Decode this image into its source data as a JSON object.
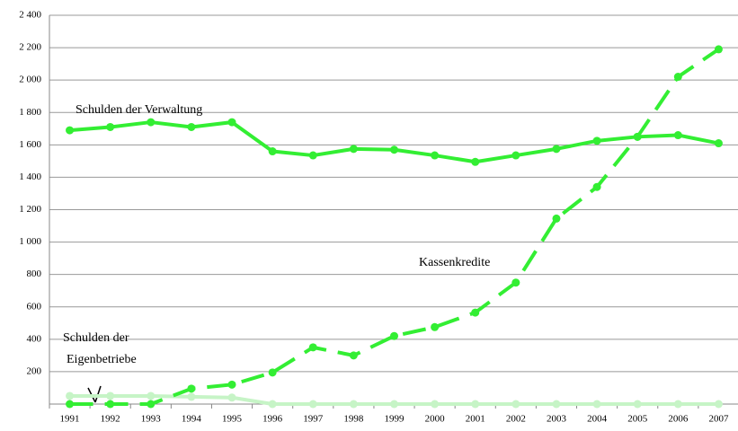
{
  "chart_data": {
    "type": "line",
    "categories": [
      "1991",
      "1992",
      "1993",
      "1994",
      "1995",
      "1996",
      "1997",
      "1998",
      "1999",
      "2000",
      "2001",
      "2002",
      "2003",
      "2004",
      "2005",
      "2006",
      "2007"
    ],
    "series": [
      {
        "color": "#33ee33",
        "dash": false,
        "values": [
          1690,
          1710,
          1740,
          1710,
          1740,
          1560,
          1535,
          1575,
          1570,
          1535,
          1495,
          1535,
          1575,
          1625,
          1650,
          1660,
          1610
        ]
      },
      {
        "color": "#33ee33",
        "dash": true,
        "values": [
          0,
          0,
          0,
          95,
          120,
          195,
          350,
          300,
          420,
          475,
          565,
          750,
          1145,
          1340,
          1650,
          2020,
          2190
        ]
      },
      {
        "color": "#c6f4c6",
        "dash": false,
        "values": [
          50,
          50,
          50,
          45,
          40,
          0,
          0,
          0,
          0,
          0,
          0,
          0,
          0,
          0,
          0,
          0,
          0
        ]
      }
    ],
    "annotations": [
      "Schulden der Verwaltung",
      "Kassenkredite",
      "Schulden der",
      "Eigenbetriebe"
    ],
    "ylim": [
      0,
      2400
    ],
    "yticks": [
      200,
      400,
      600,
      800,
      {
        "value": 1000,
        "label": "1 000"
      },
      {
        "value": 1200,
        "label": "1 200"
      },
      {
        "value": 1400,
        "label": "1 400"
      },
      {
        "value": 1600,
        "label": "1 600"
      },
      {
        "value": 1800,
        "label": "1 800"
      },
      {
        "value": 2000,
        "label": "2 000"
      },
      {
        "value": 2200,
        "label": "2 200"
      },
      {
        "value": 2400,
        "label": "2 400"
      }
    ],
    "grid": true
  }
}
